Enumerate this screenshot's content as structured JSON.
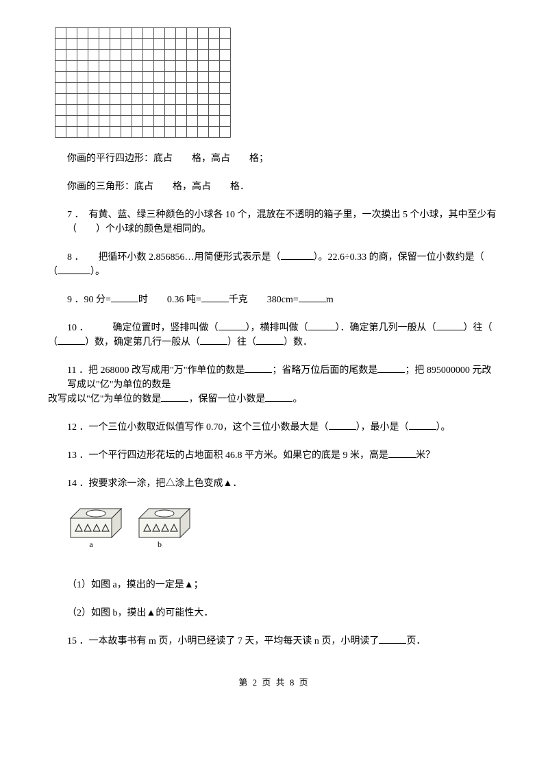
{
  "grid": {
    "cols": 16,
    "rows": 10,
    "cell_size": 16,
    "stroke": "#555555",
    "stroke_width": 1
  },
  "lines": {
    "parallelogram": "你画的平行四边形：底占　　格，高占　　格；",
    "triangle": "你画的三角形：底占　　格，高占　　格．"
  },
  "q7": {
    "num": "7 ．",
    "text": "　有黄、蓝、绿三种颜色的小球各 10 个，混放在不透明的箱子里，一次摸出 5 个小球，其中至少有（　　）个小球的颜色是相同的。"
  },
  "q8": {
    "num": "8 ．",
    "text_a": "　　把循环小数 2.856856…用简便形式表示是（",
    "text_b": "）。22.6÷0.33 的商，保留一位小数约是（",
    "text_c": "）。"
  },
  "q9": {
    "num": "9 ．",
    "a": "90 分=",
    "a2": "时　　0.36 吨=",
    "a3": "千克　　380cm=",
    "a4": "m"
  },
  "q10": {
    "num": "10 ．",
    "t1": "　　　确定位置时，竖排叫做（",
    "t2": "），横排叫做（",
    "t3": "）．确定第几列一般从（",
    "t4": "）往（",
    "t5": "）数，确定第几行一般从（",
    "t6": "）往（",
    "t7": "）数．"
  },
  "q11": {
    "num": "11 ．",
    "t1": "把 268000 改写成用\"万\"作单位的数是",
    "t2": "；省略万位后面的尾数是",
    "t3": "；把 895000000 元改写成以\"亿\"为单位的数是",
    "t4": "，保留一位小数是",
    "t5": "。"
  },
  "q12": {
    "num": "12 ．",
    "t1": "一个三位小数取近似值写作 0.70，这个三位小数最大是（",
    "t2": "），最小是（",
    "t3": "）。"
  },
  "q13": {
    "num": "13 ．",
    "t1": "一个平行四边形花坛的占地面积 46.8 平方米。如果它的底是 9 米，高是",
    "t2": "米？"
  },
  "q14": {
    "num": "14 ．",
    "t": "按要求涂一涂，把△涂上色变成▲．"
  },
  "cubes": {
    "a_label": "a",
    "b_label": "b",
    "tri_count_a": 4,
    "tri_count_b": 4,
    "box_fill": "#f5f5f0",
    "top_fill": "#e8e8e2",
    "side_fill": "#e0e0d8",
    "stroke": "#333333"
  },
  "q14_1": "（1）如图 a，摸出的一定是▲；",
  "q14_2": "（2）如图 b，摸出▲的可能性大．",
  "q15": {
    "num": "15 ．",
    "t1": "一本故事书有 m 页，小明已经读了 7 天，平均每天读 n 页，小明读了",
    "t2": "页．"
  },
  "footer": "第 2 页 共 8 页"
}
